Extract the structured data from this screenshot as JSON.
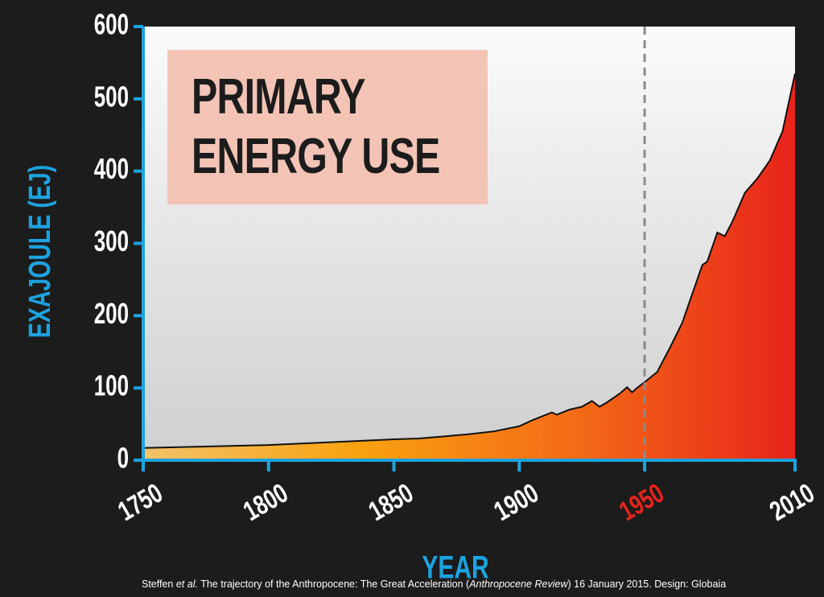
{
  "chart_data": {
    "type": "area",
    "title": "PRIMARY ENERGY USE",
    "y_label": "EXAJOULE (EJ)",
    "x_label": "YEAR",
    "source": [
      "Steffen ",
      "et al.",
      " The trajectory of the Anthropocene: The Great Acceleration (",
      "Anthropocene Review",
      ") 16 January 2015. Design: Globaia"
    ],
    "x": [
      1750,
      1800,
      1850,
      1860,
      1870,
      1880,
      1890,
      1900,
      1905,
      1910,
      1913,
      1915,
      1920,
      1925,
      1929,
      1932,
      1935,
      1940,
      1943,
      1945,
      1947,
      1950,
      1955,
      1960,
      1965,
      1970,
      1973,
      1975,
      1979,
      1982,
      1985,
      1990,
      1995,
      2000,
      2005,
      2010
    ],
    "values": [
      17,
      21,
      29,
      30,
      33,
      36,
      40,
      47,
      55,
      62,
      66,
      63,
      70,
      74,
      82,
      74,
      80,
      92,
      101,
      94,
      100,
      108,
      122,
      155,
      190,
      240,
      270,
      275,
      315,
      310,
      330,
      370,
      390,
      415,
      455,
      535
    ],
    "colors": [
      "#f2c26a",
      "#f9a10f",
      "#f36a17",
      "#e8231b"
    ],
    "line_color": "#111111",
    "reference_line_x": 1950,
    "reference_color": "#e8231b",
    "axis_color": "#1ca3e0",
    "xlim": [
      1750,
      2010
    ],
    "xticks": [
      1750,
      1800,
      1850,
      1900,
      1950,
      2010
    ],
    "ylim": [
      0,
      600
    ],
    "yticks": [
      0,
      100,
      200,
      300,
      400,
      500,
      600
    ]
  }
}
